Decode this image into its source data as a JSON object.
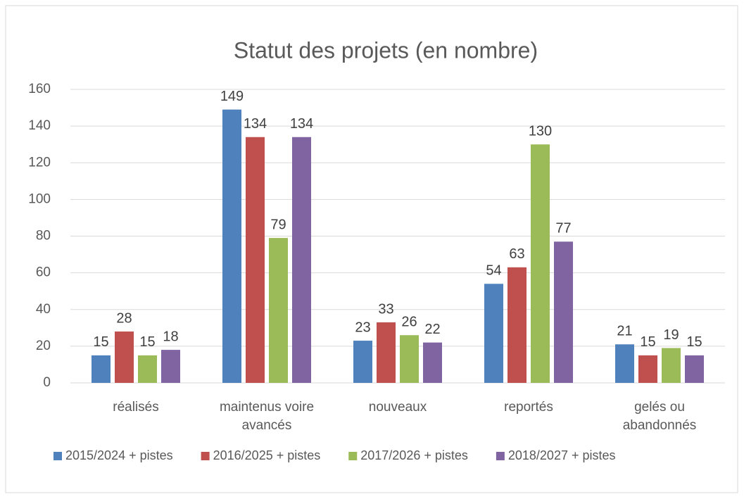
{
  "chart_data": {
    "type": "bar",
    "title": "Statut des projets (en nombre)",
    "categories": [
      "réalisés",
      "maintenus voire avancés",
      "nouveaux",
      "reportés",
      "gelés ou abandonnés"
    ],
    "series": [
      {
        "name": "2015/2024 + pistes",
        "color": "#4f81bd",
        "values": [
          15,
          149,
          23,
          54,
          21
        ]
      },
      {
        "name": "2016/2025 + pistes",
        "color": "#c0504d",
        "values": [
          28,
          134,
          33,
          63,
          15
        ]
      },
      {
        "name": "2017/2026 + pistes",
        "color": "#9bbb59",
        "values": [
          15,
          79,
          26,
          130,
          19
        ]
      },
      {
        "name": "2018/2027 + pistes",
        "color": "#8064a2",
        "values": [
          18,
          134,
          22,
          77,
          15
        ]
      }
    ],
    "ylim": [
      0,
      160
    ],
    "yticks": [
      0,
      20,
      40,
      60,
      80,
      100,
      120,
      140,
      160
    ],
    "grid": true,
    "legend": "bottom"
  }
}
